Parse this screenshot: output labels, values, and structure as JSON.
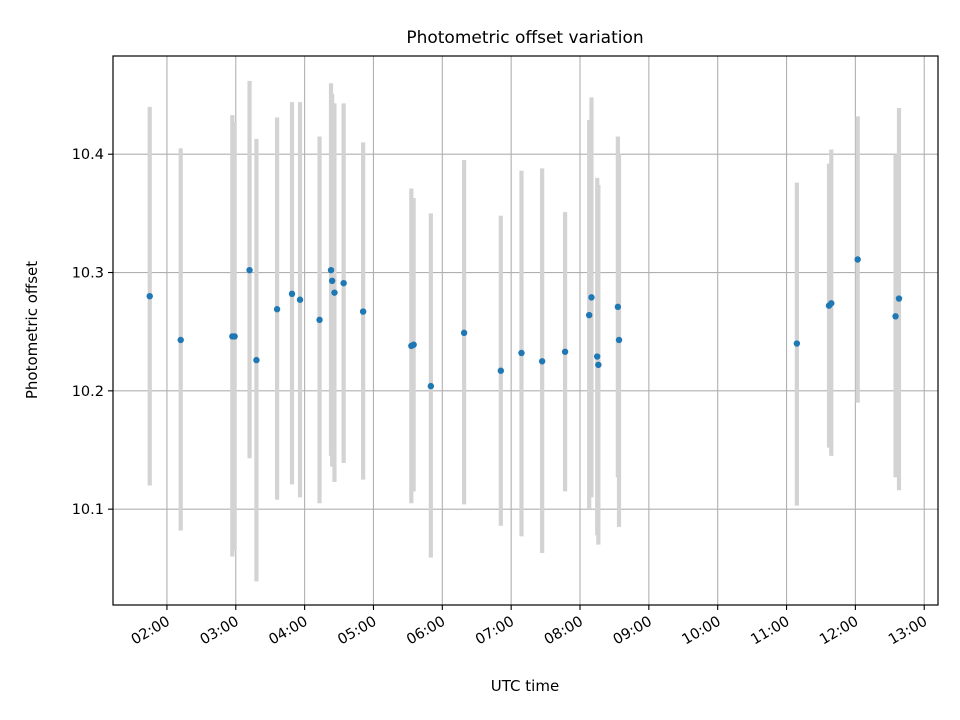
{
  "chart_data": {
    "type": "scatter",
    "title": "Photometric offset variation",
    "xlabel": "UTC time",
    "ylabel": "Photometric offset",
    "x_ticks": [
      "02:00",
      "03:00",
      "04:00",
      "05:00",
      "06:00",
      "07:00",
      "08:00",
      "09:00",
      "10:00",
      "11:00",
      "12:00",
      "13:00"
    ],
    "y_ticks": [
      "10.1",
      "10.2",
      "10.3",
      "10.4"
    ],
    "xlim": [
      "01:13",
      "13:12"
    ],
    "ylim": [
      10.019,
      10.483
    ],
    "grid": true,
    "point_color": "#1f77b4",
    "errorbar_color": "#d3d3d3",
    "points": [
      {
        "time": "01:45",
        "value": 10.28,
        "low": 10.12,
        "high": 10.44
      },
      {
        "time": "02:12",
        "value": 10.243,
        "low": 10.082,
        "high": 10.405
      },
      {
        "time": "02:57",
        "value": 10.246,
        "low": 10.06,
        "high": 10.433
      },
      {
        "time": "02:59",
        "value": 10.246,
        "low": 10.065,
        "high": 10.427
      },
      {
        "time": "03:12",
        "value": 10.302,
        "low": 10.143,
        "high": 10.462
      },
      {
        "time": "03:18",
        "value": 10.226,
        "low": 10.039,
        "high": 10.413
      },
      {
        "time": "03:36",
        "value": 10.269,
        "low": 10.108,
        "high": 10.431
      },
      {
        "time": "03:49",
        "value": 10.282,
        "low": 10.121,
        "high": 10.444
      },
      {
        "time": "03:56",
        "value": 10.277,
        "low": 10.11,
        "high": 10.444
      },
      {
        "time": "04:13",
        "value": 10.26,
        "low": 10.105,
        "high": 10.415
      },
      {
        "time": "04:23",
        "value": 10.302,
        "low": 10.145,
        "high": 10.46
      },
      {
        "time": "04:24",
        "value": 10.293,
        "low": 10.136,
        "high": 10.451
      },
      {
        "time": "04:26",
        "value": 10.283,
        "low": 10.123,
        "high": 10.443
      },
      {
        "time": "04:34",
        "value": 10.291,
        "low": 10.139,
        "high": 10.443
      },
      {
        "time": "04:51",
        "value": 10.267,
        "low": 10.125,
        "high": 10.41
      },
      {
        "time": "05:33",
        "value": 10.238,
        "low": 10.105,
        "high": 10.371
      },
      {
        "time": "05:35",
        "value": 10.239,
        "low": 10.115,
        "high": 10.363
      },
      {
        "time": "05:50",
        "value": 10.204,
        "low": 10.059,
        "high": 10.35
      },
      {
        "time": "06:19",
        "value": 10.249,
        "low": 10.104,
        "high": 10.395
      },
      {
        "time": "06:51",
        "value": 10.217,
        "low": 10.086,
        "high": 10.348
      },
      {
        "time": "07:09",
        "value": 10.232,
        "low": 10.077,
        "high": 10.386
      },
      {
        "time": "07:27",
        "value": 10.225,
        "low": 10.063,
        "high": 10.388
      },
      {
        "time": "07:47",
        "value": 10.233,
        "low": 10.115,
        "high": 10.351
      },
      {
        "time": "08:08",
        "value": 10.264,
        "low": 10.1,
        "high": 10.429
      },
      {
        "time": "08:10",
        "value": 10.279,
        "low": 10.11,
        "high": 10.448
      },
      {
        "time": "08:15",
        "value": 10.229,
        "low": 10.078,
        "high": 10.38
      },
      {
        "time": "08:16",
        "value": 10.222,
        "low": 10.07,
        "high": 10.374
      },
      {
        "time": "08:33",
        "value": 10.271,
        "low": 10.127,
        "high": 10.415
      },
      {
        "time": "08:34",
        "value": 10.243,
        "low": 10.085,
        "high": 10.4
      },
      {
        "time": "11:09",
        "value": 10.24,
        "low": 10.103,
        "high": 10.376
      },
      {
        "time": "11:37",
        "value": 10.272,
        "low": 10.152,
        "high": 10.392
      },
      {
        "time": "11:39",
        "value": 10.274,
        "low": 10.145,
        "high": 10.404
      },
      {
        "time": "12:02",
        "value": 10.311,
        "low": 10.19,
        "high": 10.432
      },
      {
        "time": "12:35",
        "value": 10.263,
        "low": 10.127,
        "high": 10.4
      },
      {
        "time": "12:38",
        "value": 10.278,
        "low": 10.116,
        "high": 10.439
      }
    ]
  }
}
